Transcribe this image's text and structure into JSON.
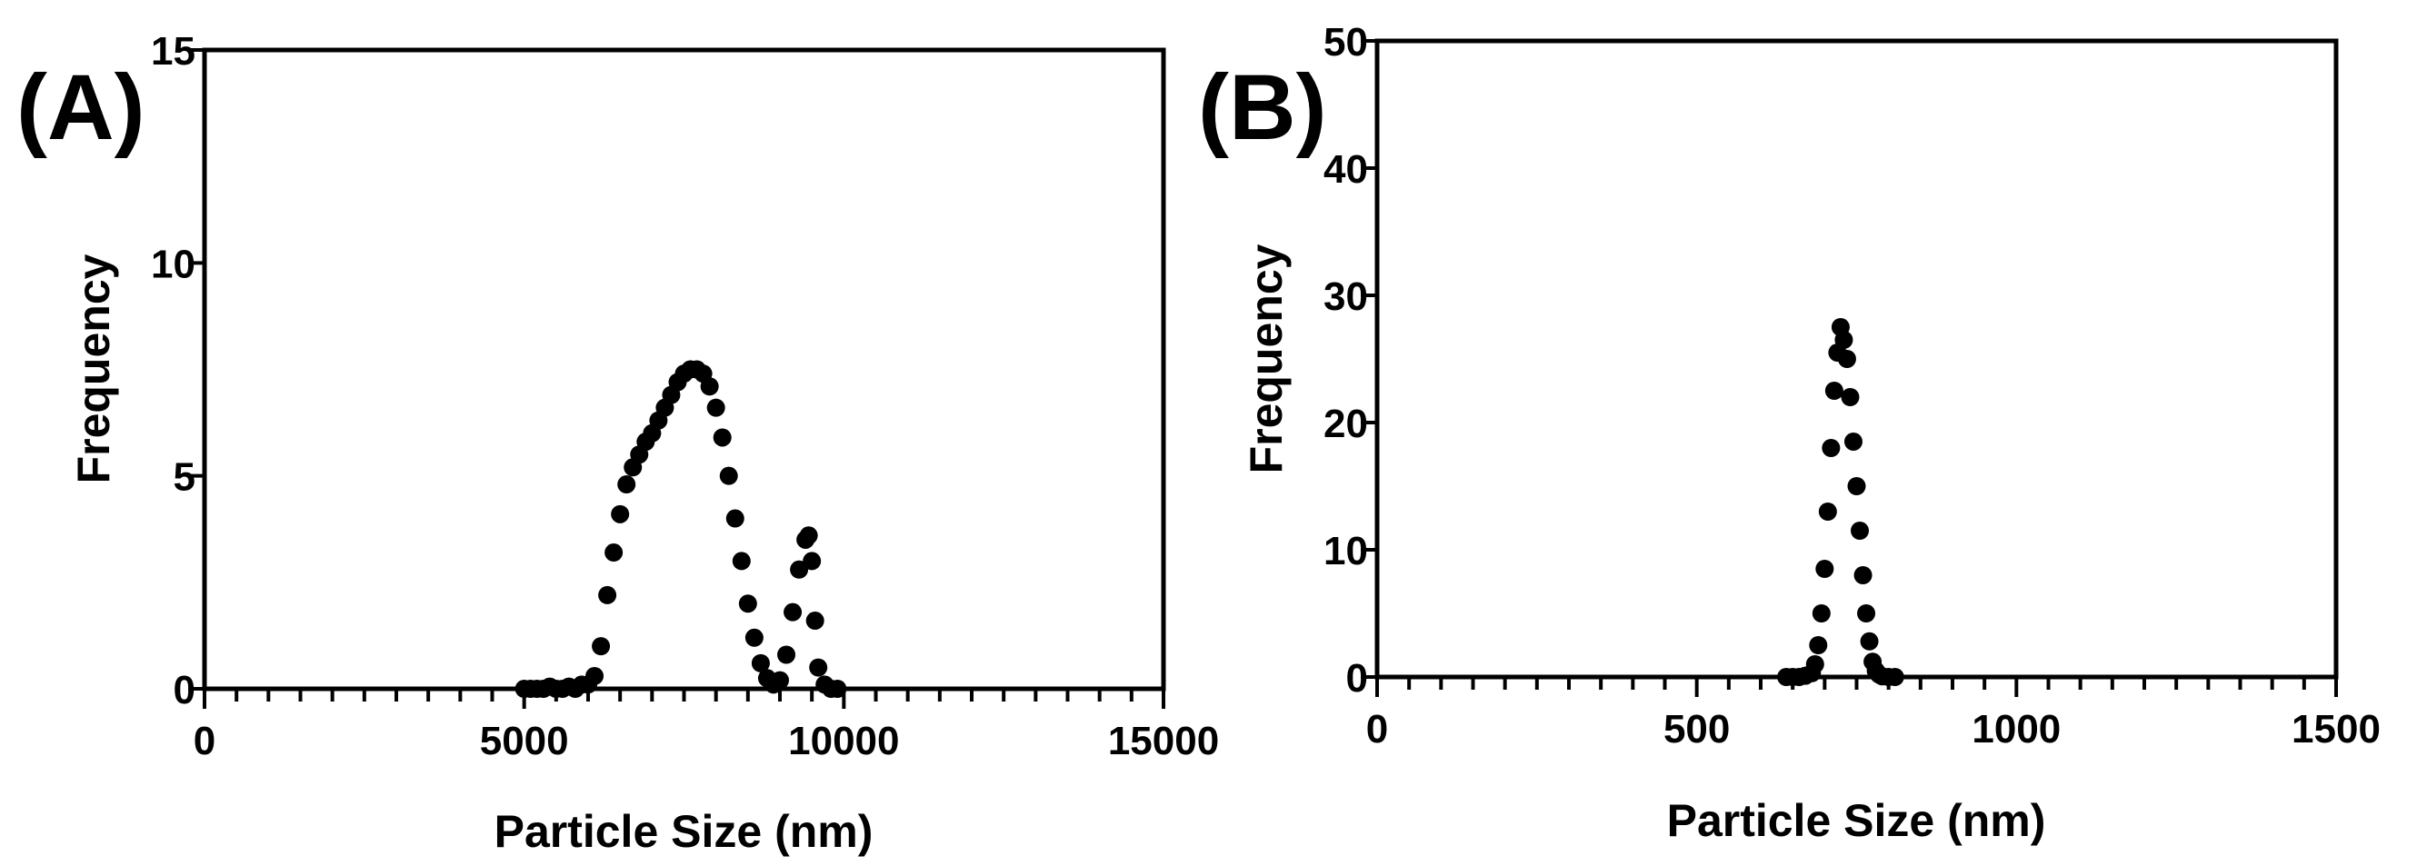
{
  "chart_data": [
    {
      "panel": "(A)",
      "type": "scatter",
      "xlabel": "Particle Size (nm)",
      "ylabel": "Frequency",
      "xlim": [
        0,
        15000
      ],
      "ylim": [
        0,
        15
      ],
      "xticks": [
        0,
        5000,
        10000,
        15000
      ],
      "yticks": [
        0,
        5,
        10,
        15
      ],
      "grid": false,
      "marker_color": "#000000",
      "series": [
        {
          "x": [
            5000,
            5100,
            5200,
            5300,
            5400,
            5500,
            5600,
            5700,
            5800,
            5900,
            6000,
            6100,
            6200,
            6300,
            6400,
            6500,
            6600,
            6700,
            6800,
            6900,
            7000,
            7100,
            7200,
            7300,
            7400,
            7500,
            7600,
            7700,
            7800,
            7900,
            8000,
            8100,
            8200,
            8300,
            8400,
            8500,
            8600,
            8700,
            8800,
            8900,
            9000,
            9100,
            9200,
            9300,
            9400,
            9450,
            9500,
            9550,
            9600,
            9700,
            9800,
            9900
          ],
          "y": [
            0,
            0,
            0,
            0,
            0.05,
            0,
            0,
            0.05,
            0,
            0.1,
            0.1,
            0.3,
            1.0,
            2.2,
            3.2,
            4.1,
            4.8,
            5.2,
            5.5,
            5.8,
            6.0,
            6.3,
            6.6,
            6.9,
            7.2,
            7.4,
            7.5,
            7.5,
            7.4,
            7.1,
            6.6,
            5.9,
            5.0,
            4.0,
            3.0,
            2.0,
            1.2,
            0.6,
            0.25,
            0.1,
            0.2,
            0.8,
            1.8,
            2.8,
            3.5,
            3.6,
            3.0,
            1.6,
            0.5,
            0.1,
            0,
            0
          ]
        }
      ]
    },
    {
      "panel": "(B)",
      "type": "scatter",
      "xlabel": "Particle Size (nm)",
      "ylabel": "Frequency",
      "xlim": [
        0,
        1500
      ],
      "ylim": [
        0,
        50
      ],
      "xticks": [
        0,
        500,
        1000,
        1500
      ],
      "yticks": [
        0,
        10,
        20,
        30,
        40,
        50
      ],
      "grid": false,
      "marker_color": "#000000",
      "series": [
        {
          "x": [
            640,
            650,
            660,
            670,
            680,
            685,
            690,
            695,
            700,
            705,
            710,
            715,
            720,
            725,
            730,
            735,
            740,
            745,
            750,
            755,
            760,
            765,
            770,
            775,
            780,
            785,
            790,
            800,
            810
          ],
          "y": [
            0,
            0,
            0,
            0.1,
            0.3,
            1.0,
            2.5,
            5.0,
            8.5,
            13.0,
            18.0,
            22.5,
            25.5,
            27.5,
            26.5,
            25.0,
            22.0,
            18.5,
            15.0,
            11.5,
            8.0,
            5.0,
            2.8,
            1.2,
            0.5,
            0.2,
            0.05,
            0,
            0
          ]
        }
      ]
    }
  ]
}
